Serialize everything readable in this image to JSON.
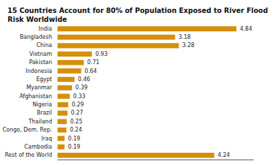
{
  "chart_data": {
    "type": "bar",
    "orientation": "horizontal",
    "title": "15 Countries Account for 80% of Population Exposed to River Flood Risk Worldwide",
    "categories": [
      "Rest of the World",
      "Cambodia",
      "Iraq",
      "Congo, Dem. Rep.",
      "Thailand",
      "Brazil",
      "Nigeria",
      "Afghanistan",
      "Myanmar",
      "Egypt",
      "Indonesia",
      "Pakistan",
      "Vietnam",
      "China",
      "Bangladesh",
      "India"
    ],
    "values": [
      4.24,
      0.19,
      0.19,
      0.24,
      0.25,
      0.27,
      0.29,
      0.33,
      0.39,
      0.46,
      0.64,
      0.71,
      0.93,
      3.28,
      3.18,
      4.84
    ],
    "color": "#D4900A",
    "xlim": [
      0,
      5.3
    ],
    "tick_labels": "y",
    "data_labels": true,
    "grid": false
  }
}
